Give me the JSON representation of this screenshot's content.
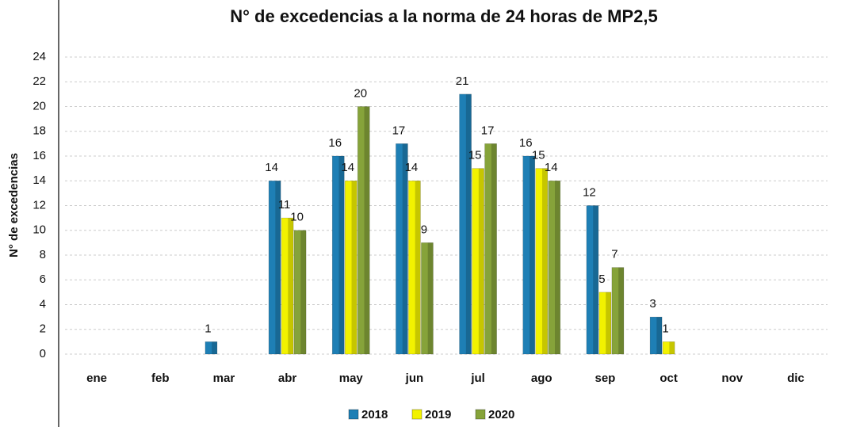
{
  "chart_data": {
    "type": "bar",
    "title": "N° de excedencias a la norma de 24 horas de MP2,5",
    "y_label": "N° de excedencias",
    "categories": [
      "ene",
      "feb",
      "mar",
      "abr",
      "may",
      "jun",
      "jul",
      "ago",
      "sep",
      "oct",
      "nov",
      "dic"
    ],
    "series": [
      {
        "name": "2018",
        "color": "#1e7fb5",
        "values": [
          null,
          null,
          1,
          14,
          16,
          17,
          21,
          16,
          12,
          3,
          null,
          null
        ]
      },
      {
        "name": "2019",
        "color": "#f2f200",
        "values": [
          null,
          null,
          null,
          11,
          14,
          14,
          15,
          15,
          5,
          1,
          null,
          null
        ]
      },
      {
        "name": "2020",
        "color": "#86a33a",
        "values": [
          null,
          null,
          null,
          10,
          20,
          9,
          17,
          14,
          7,
          null,
          null,
          null
        ]
      }
    ],
    "ylim": [
      0,
      24
    ],
    "yticks": [
      0,
      2,
      4,
      6,
      8,
      10,
      12,
      14,
      16,
      18,
      20,
      22,
      24
    ],
    "grid": true,
    "legend": "bottom"
  }
}
